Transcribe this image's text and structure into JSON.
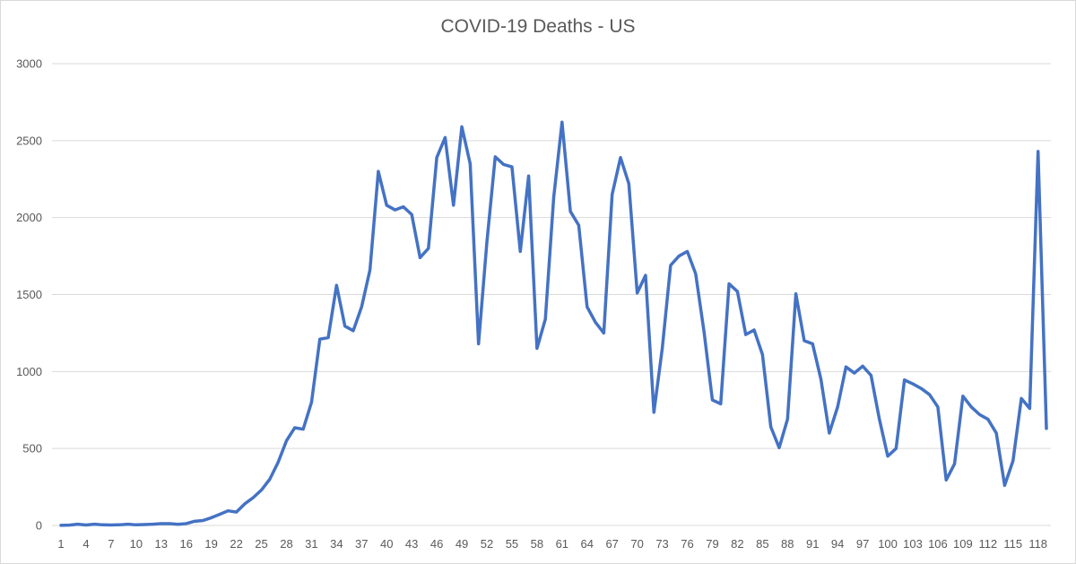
{
  "chart_data": {
    "type": "line",
    "title": "COVID-19 Deaths - US",
    "xlabel": "",
    "ylabel": "",
    "ylim": [
      0,
      3000
    ],
    "y_ticks": [
      0,
      500,
      1000,
      1500,
      2000,
      2500,
      3000
    ],
    "x_tick_labels": [
      "1",
      "4",
      "7",
      "10",
      "13",
      "16",
      "19",
      "22",
      "25",
      "28",
      "31",
      "34",
      "37",
      "40",
      "43",
      "46",
      "49",
      "52",
      "55",
      "58",
      "61",
      "64",
      "67",
      "70",
      "73",
      "76",
      "79",
      "82",
      "85",
      "88",
      "91",
      "94",
      "97",
      "100",
      "103",
      "106",
      "109",
      "112",
      "115",
      "118"
    ],
    "grid": "horizontal",
    "legend": "none",
    "colors": {
      "line": "#4472c4",
      "grid": "#d9d9d9",
      "text": "#595959"
    },
    "series": [
      {
        "name": "Deaths",
        "x_start": 1,
        "values": [
          1,
          2,
          8,
          3,
          8,
          4,
          3,
          4,
          8,
          4,
          6,
          8,
          12,
          12,
          7,
          12,
          27,
          32,
          50,
          72,
          95,
          87,
          140,
          180,
          230,
          300,
          410,
          550,
          635,
          625,
          800,
          1210,
          1220,
          1560,
          1295,
          1265,
          1420,
          1660,
          2300,
          2080,
          2050,
          2070,
          2020,
          1740,
          1800,
          2390,
          2520,
          2080,
          2590,
          2350,
          1180,
          1840,
          2395,
          2345,
          2330,
          1780,
          2270,
          1150,
          1340,
          2130,
          2620,
          2040,
          1950,
          1420,
          1320,
          1250,
          2150,
          2390,
          2220,
          1510,
          1625,
          735,
          1150,
          1690,
          1750,
          1780,
          1635,
          1260,
          815,
          790,
          1570,
          1520,
          1240,
          1270,
          1110,
          640,
          505,
          690,
          1505,
          1200,
          1180,
          950,
          600,
          770,
          1030,
          990,
          1035,
          975,
          690,
          450,
          500,
          945,
          920,
          890,
          850,
          770,
          295,
          400,
          840,
          770,
          720,
          690,
          600,
          260,
          420,
          825,
          760,
          2430,
          630
        ]
      }
    ]
  }
}
